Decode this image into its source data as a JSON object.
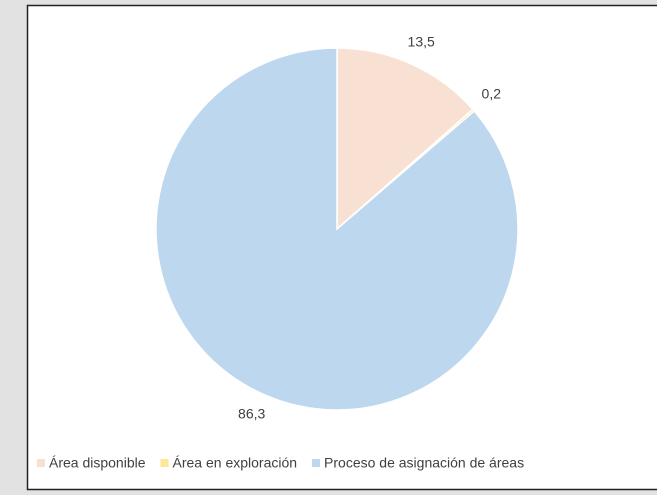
{
  "chart_data": {
    "type": "pie",
    "categories": [
      "Área disponible",
      "Área en exploración",
      "Proceso de asignación de áreas"
    ],
    "values": [
      13.5,
      0.2,
      86.3
    ],
    "value_labels": [
      "13,5",
      "0,2",
      "86,3"
    ],
    "colors": [
      "#f8e0d2",
      "#ffe699",
      "#bdd7ee"
    ],
    "legend": "bottom"
  }
}
